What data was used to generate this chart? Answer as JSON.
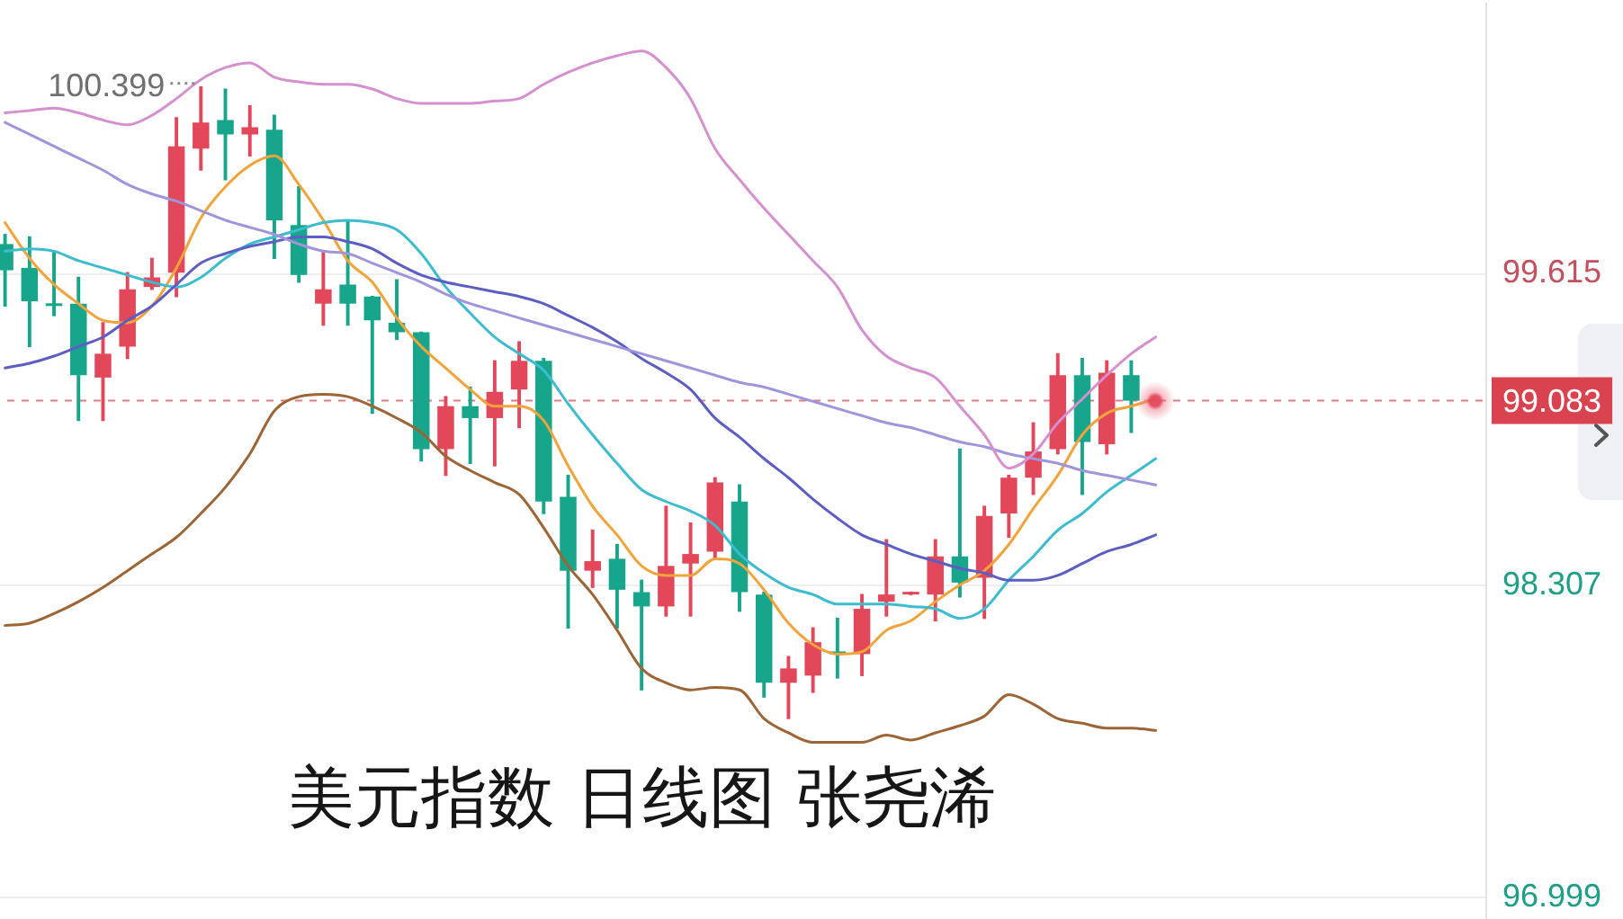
{
  "chart_data": {
    "type": "candlestick",
    "title": "美元指数 日线图 张尧浠",
    "categories": [
      null,
      null,
      null,
      null,
      null,
      null,
      null,
      null,
      null,
      null,
      null,
      null,
      null,
      null,
      null,
      null,
      null,
      null,
      null,
      null,
      null,
      null,
      null,
      null,
      null,
      null,
      null,
      null,
      null,
      null,
      null,
      null,
      null,
      null,
      null,
      null,
      null,
      null,
      null,
      null,
      null,
      null,
      null,
      null,
      null,
      null,
      null,
      null,
      null,
      null,
      null,
      null,
      null,
      null,
      null,
      null,
      null,
      null,
      null,
      null,
      null
    ],
    "ohlc": [
      [
        99.74,
        99.78,
        99.48,
        99.63
      ],
      [
        99.64,
        99.77,
        99.31,
        99.5
      ],
      [
        99.49,
        99.71,
        99.44,
        99.48
      ],
      [
        99.49,
        99.6,
        99.0,
        99.19
      ],
      [
        99.18,
        99.41,
        99.0,
        99.28
      ],
      [
        99.31,
        99.62,
        99.26,
        99.55
      ],
      [
        99.56,
        99.68,
        99.55,
        99.6
      ],
      [
        99.62,
        100.27,
        99.52,
        100.15
      ],
      [
        100.14,
        100.399,
        100.05,
        100.25
      ],
      [
        100.26,
        100.39,
        100.01,
        100.2
      ],
      [
        100.2,
        100.32,
        100.11,
        100.23
      ],
      [
        100.22,
        100.28,
        99.68,
        99.84
      ],
      [
        99.82,
        99.98,
        99.58,
        99.61
      ],
      [
        99.49,
        99.71,
        99.4,
        99.55
      ],
      [
        99.57,
        99.84,
        99.4,
        99.49
      ],
      [
        99.52,
        99.52,
        99.03,
        99.42
      ],
      [
        99.41,
        99.59,
        99.34,
        99.37
      ],
      [
        99.37,
        99.37,
        98.83,
        98.88
      ],
      [
        98.88,
        99.1,
        98.77,
        99.06
      ],
      [
        99.06,
        99.14,
        98.82,
        99.01
      ],
      [
        99.01,
        99.25,
        98.81,
        99.12
      ],
      [
        99.13,
        99.33,
        98.97,
        99.25
      ],
      [
        99.25,
        99.26,
        98.61,
        98.66
      ],
      [
        98.68,
        98.77,
        98.13,
        98.37
      ],
      [
        98.37,
        98.54,
        98.3,
        98.41
      ],
      [
        98.42,
        98.48,
        98.13,
        98.29
      ],
      [
        98.28,
        98.33,
        97.87,
        98.22
      ],
      [
        98.22,
        98.64,
        98.18,
        98.39
      ],
      [
        98.4,
        98.57,
        98.18,
        98.44
      ],
      [
        98.45,
        98.76,
        98.42,
        98.74
      ],
      [
        98.66,
        98.73,
        98.2,
        98.28
      ],
      [
        98.27,
        98.28,
        97.84,
        97.9
      ],
      [
        97.9,
        98.01,
        97.75,
        97.96
      ],
      [
        97.93,
        98.13,
        97.86,
        98.07
      ],
      [
        98.03,
        98.17,
        97.92,
        98.02
      ],
      [
        98.02,
        98.27,
        97.93,
        98.21
      ],
      [
        98.24,
        98.5,
        98.18,
        98.27
      ],
      [
        98.27,
        98.28,
        98.27,
        98.28
      ],
      [
        98.27,
        98.5,
        98.16,
        98.43
      ],
      [
        98.43,
        98.88,
        98.26,
        98.32
      ],
      [
        98.34,
        98.64,
        98.17,
        98.6
      ],
      [
        98.61,
        98.77,
        98.51,
        98.76
      ],
      [
        98.76,
        98.99,
        98.69,
        98.87
      ],
      [
        98.88,
        99.28,
        98.86,
        99.19
      ],
      [
        99.19,
        99.26,
        98.69,
        98.91
      ],
      [
        98.9,
        99.25,
        98.86,
        99.2
      ],
      [
        99.19,
        99.25,
        98.95,
        99.083
      ],
      null,
      null,
      null,
      null,
      null,
      null,
      null,
      null,
      null,
      null,
      null,
      null,
      null,
      null
    ],
    "colors": [
      "#17a68b",
      "#17a68b",
      "#17a68b",
      "#17a68b",
      "#e3475a",
      "#e3475a",
      "#e3475a",
      "#e3475a",
      "#e3475a",
      "#17a68b",
      "#e3475a",
      "#17a68b",
      "#17a68b",
      "#e3475a",
      "#17a68b",
      "#17a68b",
      "#17a68b",
      "#17a68b",
      "#e3475a",
      "#17a68b",
      "#e3475a",
      "#e3475a",
      "#17a68b",
      "#17a68b",
      "#e3475a",
      "#17a68b",
      "#17a68b",
      "#e3475a",
      "#e3475a",
      "#e3475a",
      "#17a68b",
      "#17a68b",
      "#e3475a",
      "#e3475a",
      "#17a68b",
      "#e3475a",
      "#e3475a",
      "#e3475a",
      "#e3475a",
      "#17a68b",
      "#e3475a",
      "#e3475a",
      "#e3475a",
      "#e3475a",
      "#17a68b",
      "#e3475a",
      "#17a68b",
      null,
      null,
      null,
      null,
      null,
      null,
      null,
      null,
      null,
      null,
      null,
      null,
      null,
      null
    ],
    "series": [
      {
        "type": "line",
        "color": "#d690cf",
        "values": [
          100.29,
          100.3,
          100.31,
          100.29,
          100.26,
          100.24,
          100.28,
          100.35,
          100.43,
          100.48,
          100.5,
          100.44,
          100.42,
          100.41,
          100.41,
          100.39,
          100.35,
          100.33,
          100.33,
          100.33,
          100.34,
          100.35,
          100.41,
          100.46,
          100.5,
          100.53,
          100.55,
          100.48,
          100.35,
          100.14,
          100.01,
          99.89,
          99.78,
          99.67,
          99.56,
          99.38,
          99.27,
          99.22,
          99.18,
          99.06,
          98.94,
          98.8,
          98.86,
          98.99,
          99.09,
          99.19,
          99.28,
          99.35,
          null,
          null,
          null,
          null,
          null,
          null,
          null,
          null,
          null,
          null,
          null,
          null,
          null
        ]
      },
      {
        "type": "line",
        "color": "#a095dc",
        "values": [
          100.25,
          100.2,
          100.15,
          100.1,
          100.05,
          99.99,
          99.95,
          99.92,
          99.88,
          99.84,
          99.81,
          99.78,
          99.74,
          99.71,
          99.7,
          99.66,
          99.62,
          99.58,
          99.53,
          99.49,
          99.46,
          99.43,
          99.4,
          99.37,
          99.34,
          99.31,
          99.28,
          99.25,
          99.22,
          99.19,
          99.16,
          99.14,
          99.11,
          99.08,
          99.05,
          99.02,
          98.99,
          98.97,
          98.94,
          98.91,
          98.89,
          98.86,
          98.84,
          98.82,
          98.79,
          98.77,
          98.75,
          98.73,
          null,
          null,
          null,
          null,
          null,
          null,
          null,
          null,
          null,
          null,
          null,
          null,
          null
        ]
      },
      {
        "type": "line",
        "color": "#5c5ec4",
        "values": [
          99.22,
          99.24,
          99.27,
          99.31,
          99.35,
          99.42,
          99.48,
          99.57,
          99.66,
          99.7,
          99.73,
          99.75,
          99.77,
          99.77,
          99.75,
          99.72,
          99.66,
          99.61,
          99.58,
          99.56,
          99.54,
          99.52,
          99.49,
          99.44,
          99.39,
          99.33,
          99.26,
          99.2,
          99.13,
          99.01,
          98.93,
          98.84,
          98.76,
          98.67,
          98.59,
          98.52,
          98.48,
          98.44,
          98.41,
          98.38,
          98.36,
          98.33,
          98.33,
          98.35,
          98.4,
          98.45,
          98.48,
          98.52,
          null,
          null,
          null,
          null,
          null,
          null,
          null,
          null,
          null,
          null,
          null,
          null,
          null
        ]
      },
      {
        "type": "line",
        "color": "#3bbccf",
        "values": [
          99.71,
          99.72,
          99.71,
          99.67,
          99.64,
          99.61,
          99.58,
          99.56,
          99.6,
          99.68,
          99.74,
          99.77,
          99.8,
          99.83,
          99.84,
          99.83,
          99.8,
          99.7,
          99.56,
          99.45,
          99.35,
          99.28,
          99.21,
          99.07,
          98.94,
          98.82,
          98.71,
          98.66,
          98.62,
          98.56,
          98.44,
          98.36,
          98.3,
          98.27,
          98.23,
          98.23,
          98.23,
          98.22,
          98.21,
          98.17,
          98.21,
          98.33,
          98.43,
          98.54,
          98.61,
          98.7,
          98.77,
          98.84,
          null,
          null,
          null,
          null,
          null,
          null,
          null,
          null,
          null,
          null,
          null,
          null,
          null
        ]
      },
      {
        "type": "line",
        "color": "#f2a33a",
        "values": [
          99.83,
          99.68,
          99.57,
          99.49,
          99.42,
          99.41,
          99.48,
          99.64,
          99.85,
          99.98,
          100.07,
          100.11,
          99.99,
          99.84,
          99.67,
          99.58,
          99.43,
          99.31,
          99.22,
          99.13,
          99.06,
          99.06,
          99.0,
          98.81,
          98.64,
          98.52,
          98.39,
          98.35,
          98.35,
          98.42,
          98.4,
          98.29,
          98.15,
          98.06,
          98.02,
          98.03,
          98.12,
          98.16,
          98.24,
          98.31,
          98.37,
          98.48,
          98.63,
          98.77,
          98.94,
          99.03,
          99.06,
          99.09,
          null,
          null,
          null,
          null,
          null,
          null,
          null,
          null,
          null,
          null,
          null,
          null,
          null
        ]
      },
      {
        "type": "line",
        "color": "#9d6535",
        "values": [
          98.14,
          98.15,
          98.19,
          98.24,
          98.3,
          98.37,
          98.44,
          98.51,
          98.61,
          98.72,
          98.86,
          99.04,
          99.1,
          99.11,
          99.1,
          99.06,
          99.01,
          98.95,
          98.85,
          98.79,
          98.74,
          98.69,
          98.55,
          98.39,
          98.27,
          98.12,
          97.96,
          97.9,
          97.87,
          97.88,
          97.87,
          97.75,
          97.69,
          97.65,
          97.65,
          97.65,
          97.68,
          97.66,
          97.69,
          97.72,
          97.76,
          97.85,
          97.81,
          97.75,
          97.73,
          97.71,
          97.71,
          97.7,
          null,
          null,
          null,
          null,
          null,
          null,
          null,
          null,
          null,
          null,
          null,
          null,
          null
        ]
      }
    ],
    "ylim": [
      96.9,
      100.75
    ],
    "yticks": [
      99.615,
      98.307,
      96.999
    ],
    "ref_lines": [
      {
        "axis": "y",
        "value": 99.083,
        "label": "99.083",
        "color": "#d9434f",
        "line_style": "dashed"
      }
    ],
    "annotations": [
      "100.399"
    ],
    "grid": "y",
    "tick_labels": "y",
    "marker": "none"
  }
}
